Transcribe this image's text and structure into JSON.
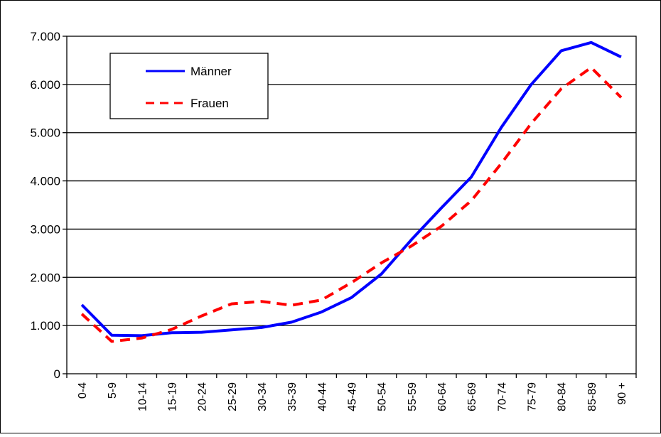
{
  "chart_data": {
    "type": "line",
    "title": "",
    "xlabel": "",
    "ylabel": "",
    "categories": [
      "0-4",
      "5-9",
      "10-14",
      "15-19",
      "20-24",
      "25-29",
      "30-34",
      "35-39",
      "40-44",
      "45-49",
      "50-54",
      "55-59",
      "60-64",
      "65-69",
      "70-74",
      "75-79",
      "80-84",
      "85-89",
      "90 +"
    ],
    "ylim": [
      0,
      7000
    ],
    "yticks": [
      0,
      1000,
      2000,
      3000,
      4000,
      5000,
      6000,
      7000
    ],
    "ytick_labels": [
      "0",
      "1.000",
      "2.000",
      "3.000",
      "4.000",
      "5.000",
      "6.000",
      "7.000"
    ],
    "grid": "horizontal",
    "legend_position": "top-left",
    "series": [
      {
        "name": "Männer",
        "color": "#0000ff",
        "style": "solid",
        "values": [
          1430,
          800,
          790,
          850,
          860,
          910,
          960,
          1070,
          1280,
          1580,
          2070,
          2780,
          3440,
          4080,
          5110,
          6000,
          6700,
          6870,
          6570
        ]
      },
      {
        "name": "Frauen",
        "color": "#ff0000",
        "style": "dashed",
        "values": [
          1240,
          670,
          740,
          920,
          1200,
          1450,
          1500,
          1420,
          1530,
          1890,
          2300,
          2650,
          3060,
          3590,
          4360,
          5190,
          5910,
          6350,
          5730
        ]
      }
    ]
  }
}
